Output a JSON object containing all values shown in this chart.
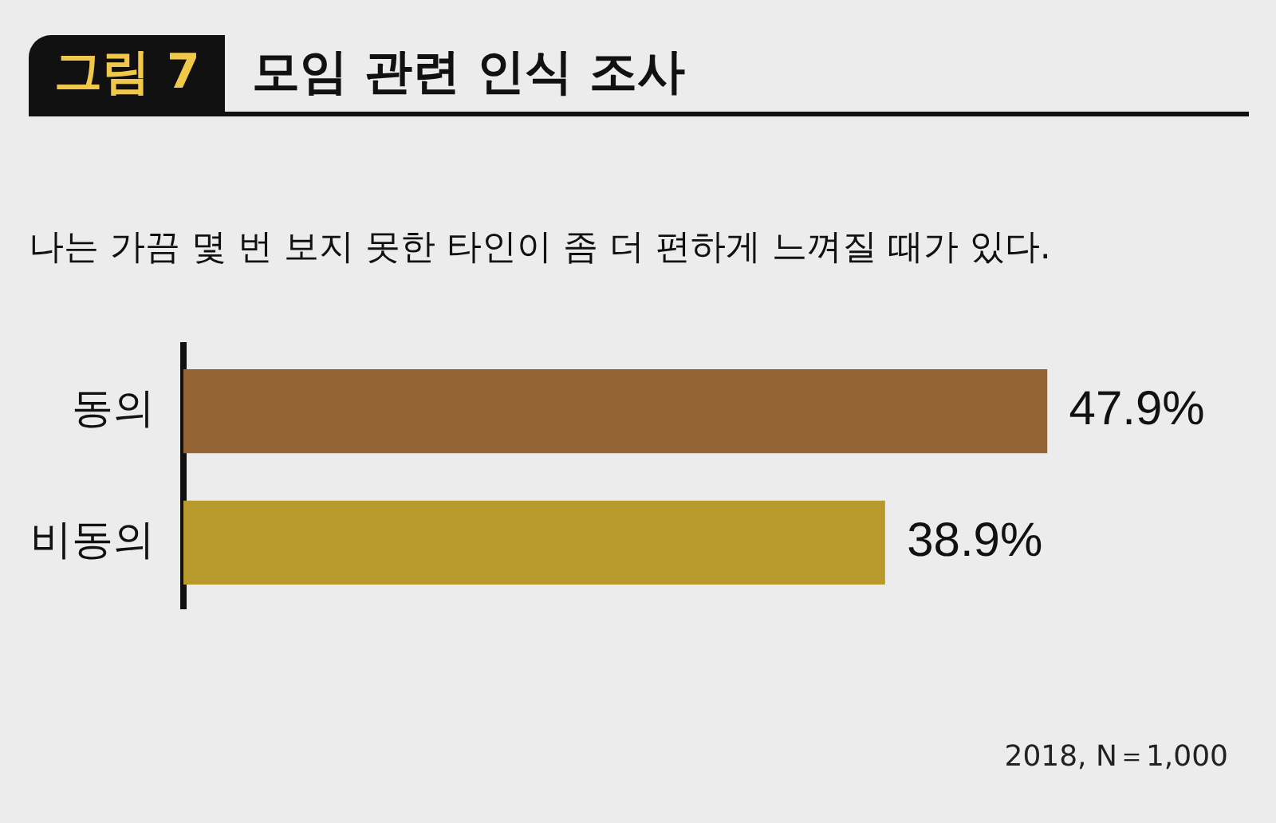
{
  "chart_data": {
    "type": "bar",
    "orientation": "horizontal",
    "title": "모임 관련 인식 조사",
    "subtitle": "나는 가끔 몇 번 보지 못한 타인이 좀 더 편하게 느껴질 때가 있다.",
    "annotations": [
      "그림 7",
      "2018, N＝1,000"
    ],
    "categories": [
      "동의",
      "비동의"
    ],
    "values": [
      47.9,
      38.9
    ],
    "colors": [
      "#956434",
      "#b89a2c"
    ],
    "value_labels": [
      "47.9%",
      "38.9%"
    ],
    "tick_labels": "y"
  }
}
